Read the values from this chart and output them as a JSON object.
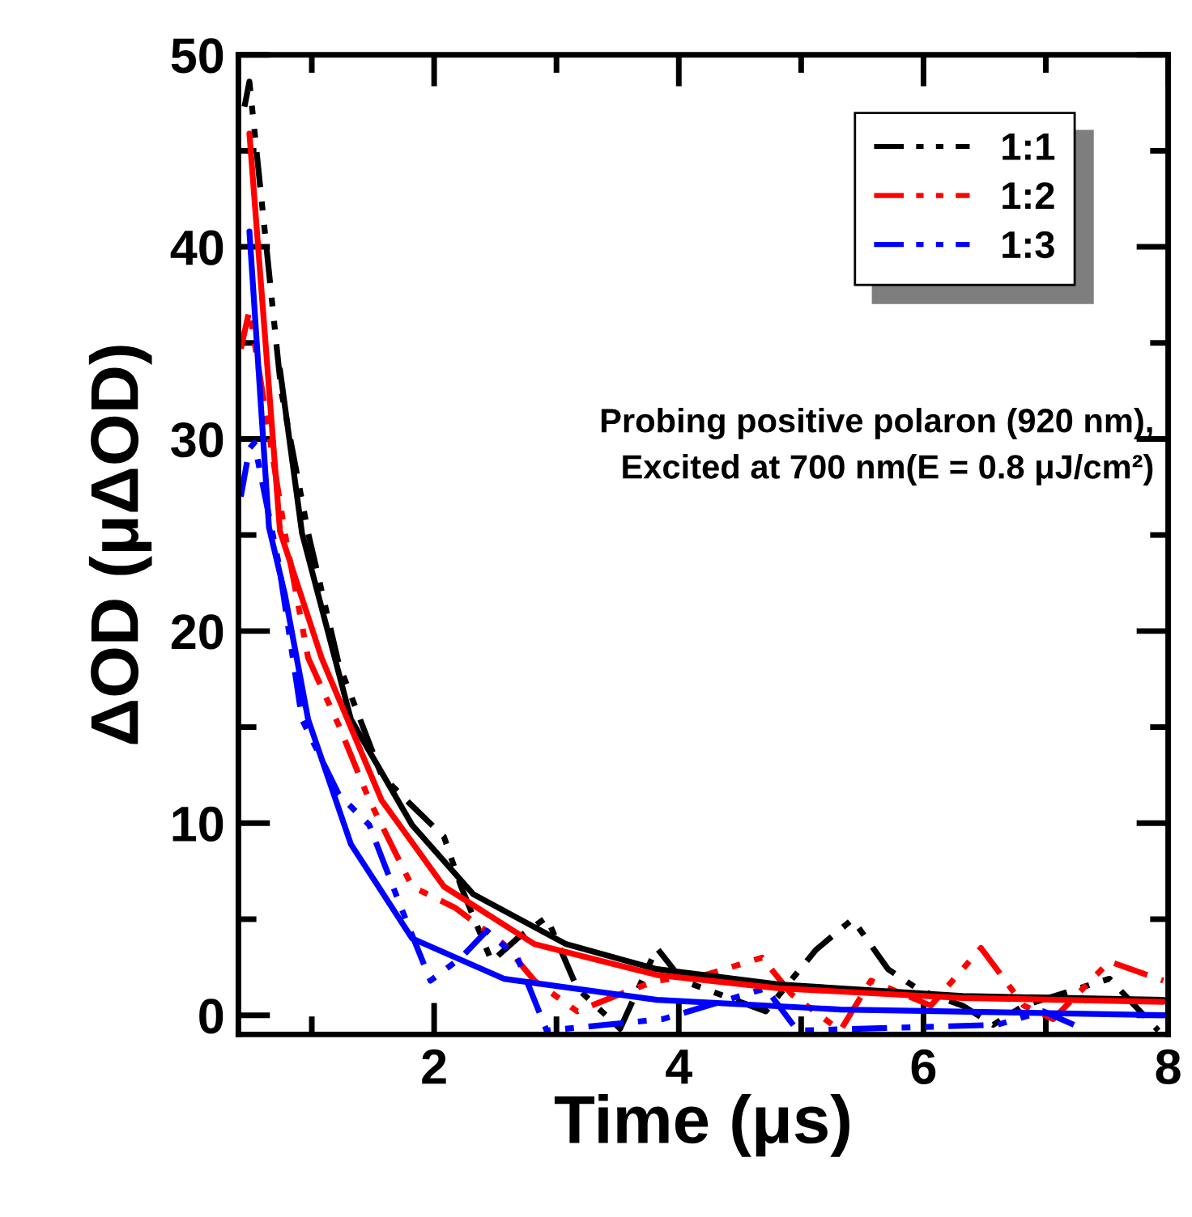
{
  "chart_data": {
    "type": "line",
    "xlabel": "Time (μs)",
    "ylabel": "ΔOD (μΔOD)",
    "xlim": [
      0.4,
      8
    ],
    "ylim": [
      -1,
      50
    ],
    "xticks": [
      {
        "value": 1,
        "label": null
      },
      2,
      {
        "value": 3,
        "label": null
      },
      4,
      {
        "value": 5,
        "label": null
      },
      6,
      {
        "value": 7,
        "label": null
      },
      8
    ],
    "yticks": [
      0,
      {
        "value": 5,
        "label": null
      },
      10,
      {
        "value": 15,
        "label": null
      },
      20,
      {
        "value": 25,
        "label": null
      },
      30,
      {
        "value": 35,
        "label": null
      },
      40,
      {
        "value": 45,
        "label": null
      },
      50
    ],
    "grid": false,
    "legend": "top right",
    "marker": "none",
    "annotations": [
      "Probing positive polaron (920 nm),\nExcited at 700 nm(E = 0.8 μJ/cm²)"
    ],
    "series": [
      {
        "name": "1:1",
        "color": "#000000",
        "line_style": "dashed",
        "x": [
          0.45,
          0.49,
          0.75,
          0.97,
          1.22,
          1.57,
          1.82,
          2.08,
          2.22,
          2.47,
          2.68,
          2.92,
          3.17,
          3.52,
          3.82,
          4.03,
          4.27,
          4.71,
          5.12,
          5.42,
          5.71,
          5.97,
          6.32,
          6.57,
          6.82,
          7.52,
          7.92
        ],
        "values": [
          47.3,
          48.6,
          32.5,
          25.1,
          18.3,
          12.5,
          10.9,
          9.3,
          6.7,
          2.8,
          4.0,
          5.1,
          1.4,
          -0.7,
          3.5,
          1.8,
          null,
          0.2,
          3.4,
          5.0,
          2.4,
          1.3,
          0.5,
          -0.5,
          0.5,
          1.9,
          -0.8
        ]
      },
      {
        "name": "1:2",
        "color": "#ff0000",
        "line_style": "dashed",
        "x": [
          0.42,
          0.49,
          0.78,
          0.97,
          1.22,
          1.47,
          1.82,
          2.17,
          2.57,
          2.82,
          3.17,
          3.52,
          3.82,
          4.22,
          4.68,
          4.92,
          5.32,
          5.57,
          6.06,
          6.47,
          6.82,
          7.06,
          7.52,
          7.96
        ],
        "values": [
          34.7,
          36.7,
          25.1,
          18.6,
          15.1,
          11.2,
          6.7,
          5.6,
          3.7,
          1.8,
          0.2,
          1.1,
          1.8,
          2.1,
          3.0,
          1.1,
          -0.8,
          1.8,
          0.5,
          3.5,
          0.5,
          -0.2,
          2.8,
          1.8
        ]
      },
      {
        "name": "1:3",
        "color": "#0000ff",
        "line_style": "dashed",
        "x": [
          0.42,
          0.49,
          0.53,
          0.65,
          0.73,
          0.92,
          1.22,
          1.47,
          1.73,
          1.97,
          2.22,
          2.43,
          2.68,
          2.92,
          3.57,
          3.87,
          4.12,
          4.71,
          4.97,
          6.27,
          6.6,
          6.98,
          7.23
        ],
        "values": [
          27.0,
          29.5,
          29.8,
          26.0,
          23.5,
          15.4,
          11.5,
          9.9,
          5.6,
          1.8,
          3.0,
          4.4,
          3.0,
          -0.8,
          null,
          -0.2,
          null,
          1.4,
          -0.8,
          null,
          -0.5,
          0.2,
          -0.5
        ]
      },
      {
        "color": "#000000",
        "line_style": "solid",
        "x": [
          0.74,
          0.92,
          1.32,
          1.82,
          2.32,
          3.08,
          3.82,
          4.82,
          6.32,
          7.96
        ],
        "values": [
          33.6,
          25.1,
          15.4,
          9.9,
          6.3,
          3.7,
          2.4,
          1.6,
          1.0,
          0.8
        ]
      },
      {
        "color": "#ff0000",
        "line_style": "solid",
        "x": [
          0.49,
          0.74,
          1.08,
          1.57,
          2.08,
          2.82,
          3.82,
          4.82,
          6.32,
          7.96
        ],
        "values": [
          45.9,
          25.2,
          18.6,
          11.2,
          6.7,
          3.7,
          2.1,
          1.4,
          0.9,
          0.7
        ]
      },
      {
        "color": "#0000ff",
        "line_style": "solid",
        "x": [
          0.49,
          0.65,
          0.78,
          0.97,
          1.32,
          1.82,
          2.57,
          3.82,
          5.32,
          7.96
        ],
        "values": [
          40.8,
          25.4,
          21.9,
          15.4,
          8.9,
          4.0,
          1.9,
          0.8,
          0.3,
          0.0
        ]
      }
    ]
  }
}
